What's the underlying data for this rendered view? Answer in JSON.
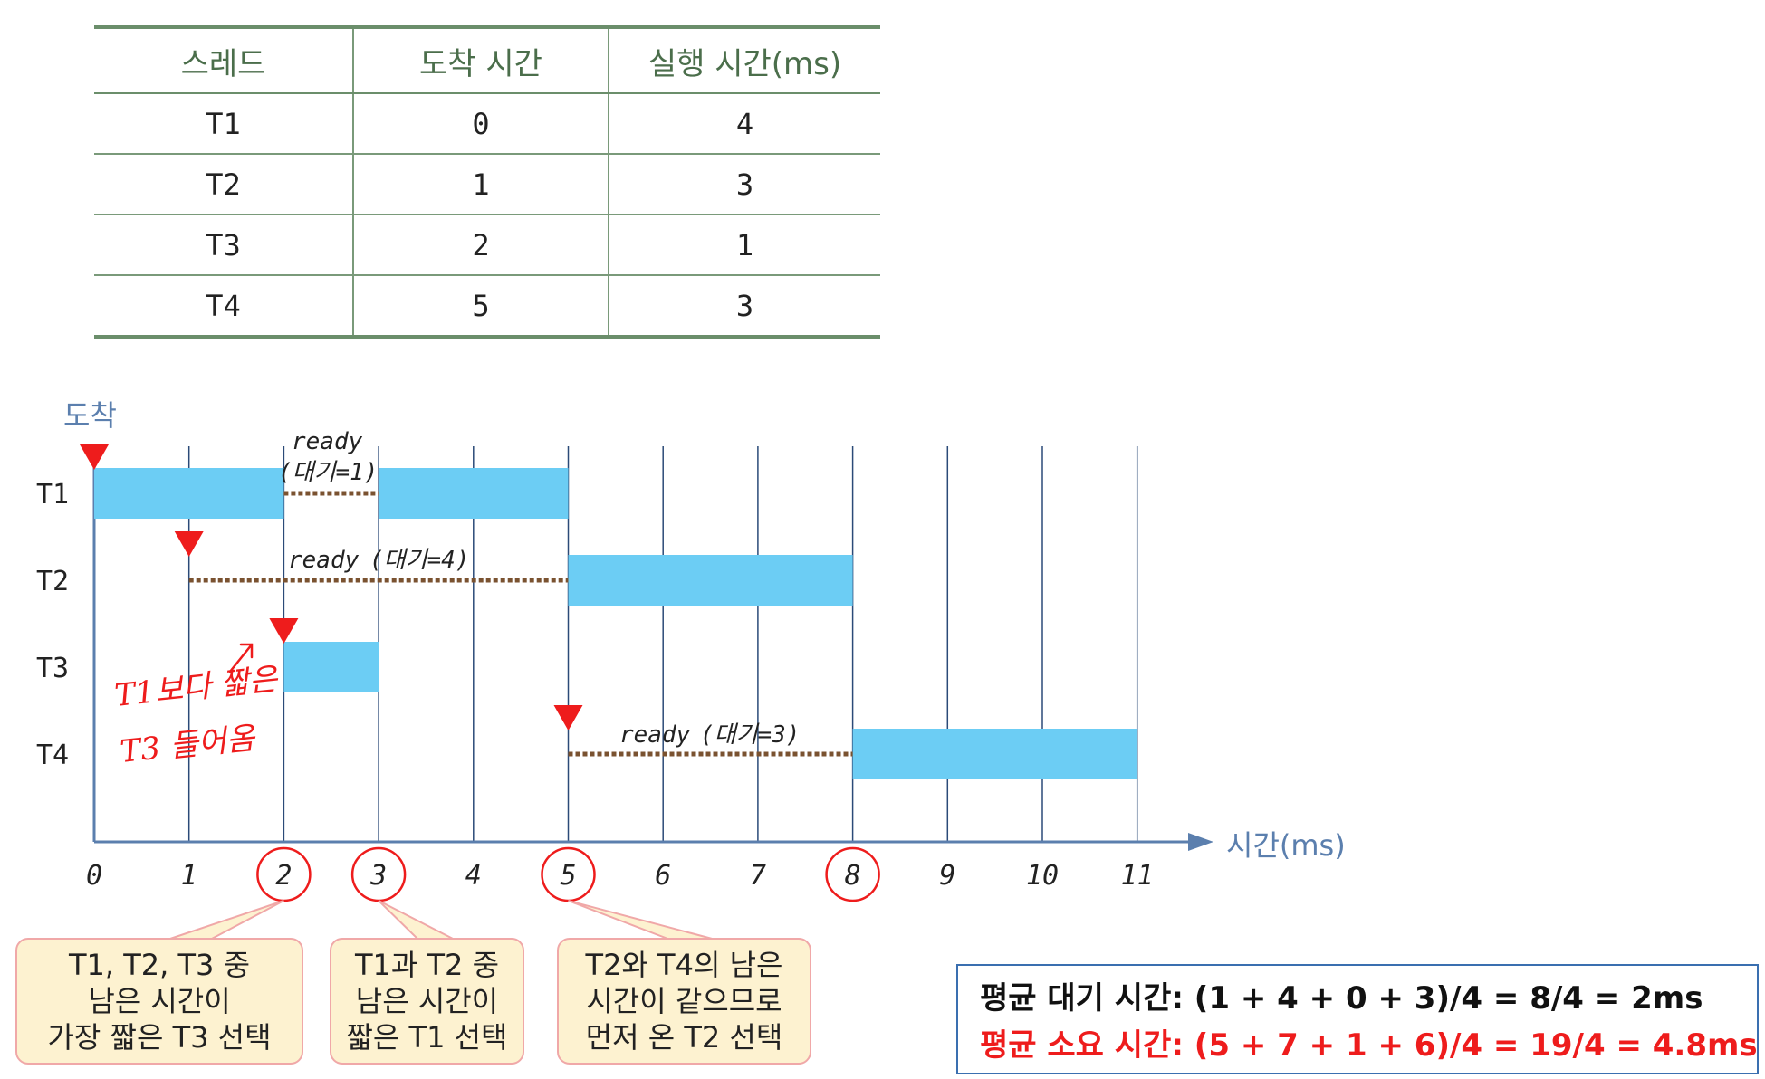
{
  "table": {
    "headers": [
      "스레드",
      "도착 시간",
      "실행 시간(ms)"
    ],
    "rows": [
      [
        "T1",
        "0",
        "4"
      ],
      [
        "T2",
        "1",
        "3"
      ],
      [
        "T3",
        "2",
        "1"
      ],
      [
        "T4",
        "5",
        "3"
      ]
    ]
  },
  "gantt": {
    "arrival_label": "도착",
    "time_axis_label": "시간(ms)",
    "ticks": [
      "0",
      "1",
      "2",
      "3",
      "4",
      "5",
      "6",
      "7",
      "8",
      "9",
      "10",
      "11"
    ],
    "circled_ticks": [
      "2",
      "3",
      "5",
      "8"
    ],
    "threads": [
      {
        "name": "T1",
        "arrival": 0,
        "runs": [
          [
            0,
            2
          ],
          [
            3,
            5
          ]
        ],
        "waits": [
          [
            2,
            3
          ]
        ]
      },
      {
        "name": "T2",
        "arrival": 1,
        "runs": [
          [
            5,
            8
          ]
        ],
        "waits": [
          [
            1,
            5
          ]
        ]
      },
      {
        "name": "T3",
        "arrival": 2,
        "runs": [
          [
            2,
            3
          ]
        ],
        "waits": []
      },
      {
        "name": "T4",
        "arrival": 5,
        "runs": [
          [
            8,
            11
          ]
        ],
        "waits": [
          [
            5,
            8
          ]
        ]
      }
    ],
    "wait_labels": {
      "t1_line1": "ready",
      "t1_line2": "(대기=1)",
      "t2_ready": "ready",
      "t2_wait": "(대기=4)",
      "t4_ready": "ready",
      "t4_wait": "(대기=3)"
    },
    "handwritten_note": [
      "T1보다 짧은",
      "T3 들어옴"
    ],
    "colors": {
      "run_bar": "#6ccdf4",
      "wait_line": "#7a5230",
      "arrival_marker": "#ee1c1c",
      "axis": "#5b7fae",
      "grid": "#2b4a78",
      "circle": "#ee1c1c",
      "handwriting": "#ee1c1c"
    }
  },
  "callouts": [
    {
      "lines": [
        "T1, T2, T3 중",
        "남은 시간이",
        "가장 짧은 T3 선택"
      ]
    },
    {
      "lines": [
        "T1과 T2 중",
        "남은 시간이",
        "짧은 T1 선택"
      ]
    },
    {
      "lines": [
        "T2와 T4의 남은",
        "시간이 같으므로",
        "먼저 온 T2 선택"
      ]
    }
  ],
  "summary": {
    "avg_wait": "평균 대기 시간: (1 + 4 + 0 + 3)/4 = 8/4 = 2ms",
    "avg_turnaround": "평균 소요 시간: (5 + 7 + 1 + 6)/4 = 19/4 = 4.8ms"
  }
}
